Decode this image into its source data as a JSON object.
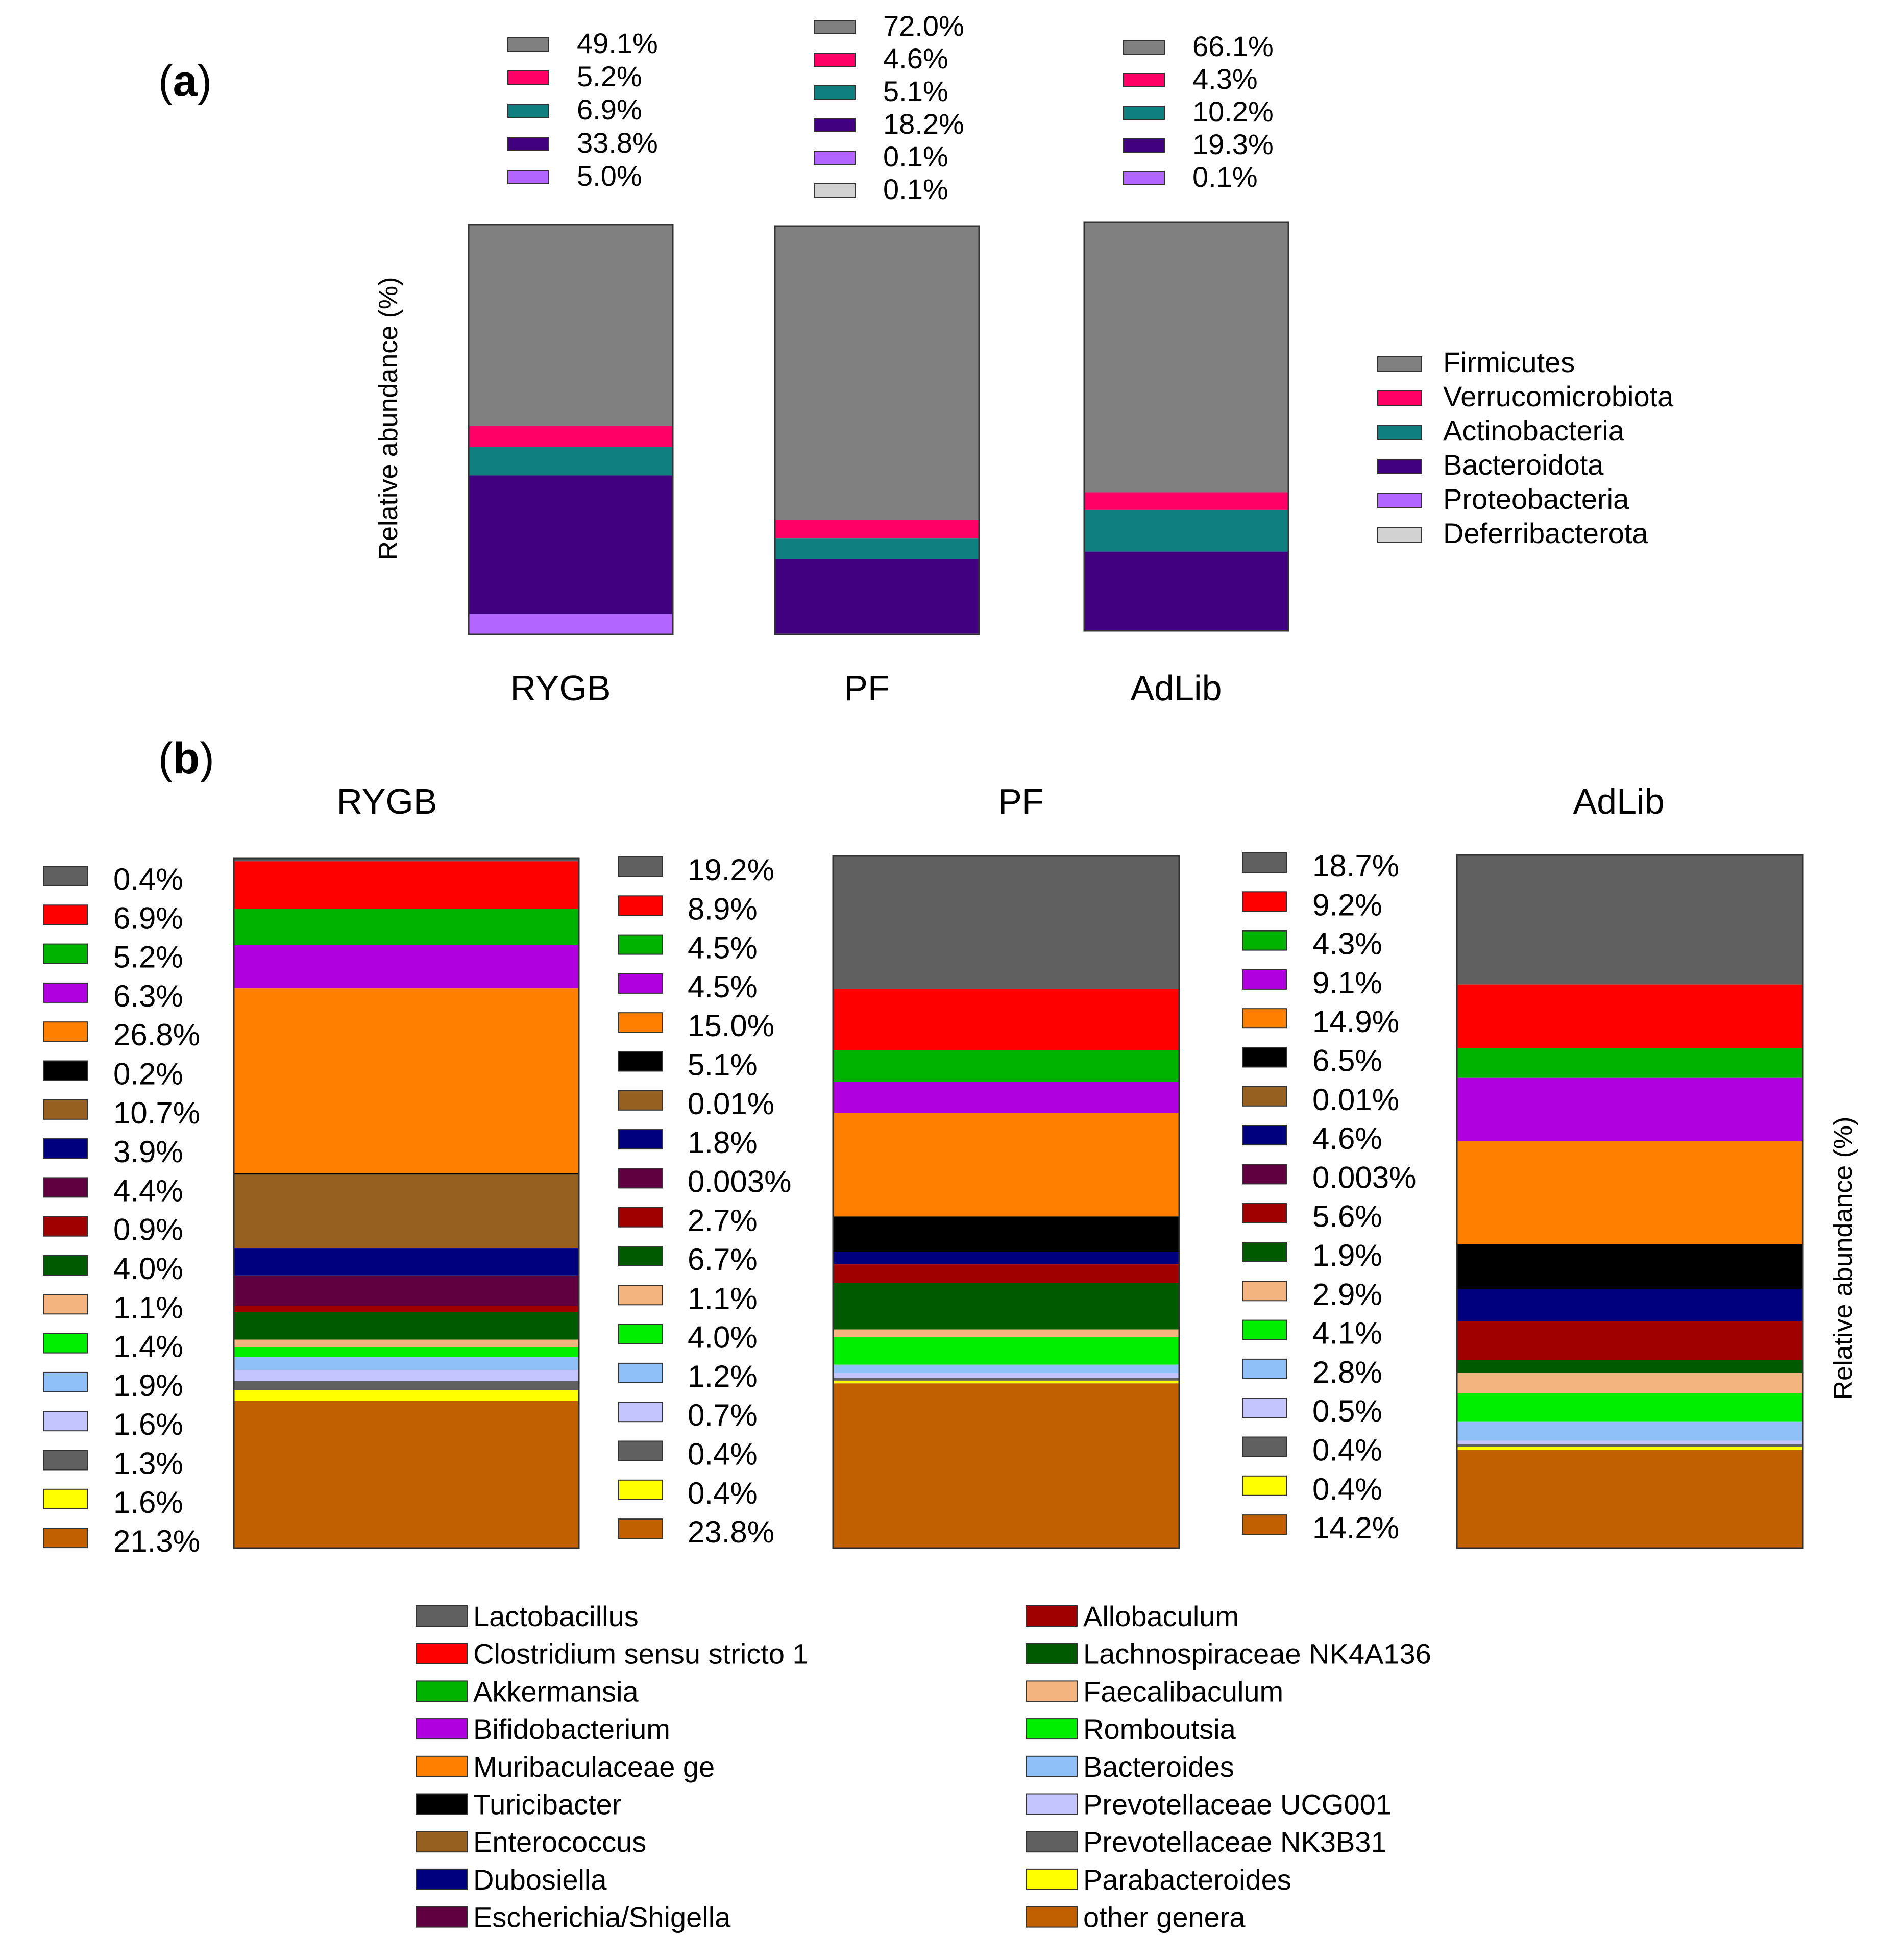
{
  "colors": {
    "phyla": [
      "#808080",
      "#ff0066",
      "#0f7f80",
      "#400080",
      "#b266ff",
      "#d2d2d2"
    ],
    "genera": [
      "#606060",
      "#ff0000",
      "#00b300",
      "#b000e0",
      "#ff8000",
      "#000000",
      "#956020",
      "#00007f",
      "#600040",
      "#a00000",
      "#005a00",
      "#f4b480",
      "#00ee00",
      "#90c0f8",
      "#c4c4ff",
      "#606060",
      "#ffff00",
      "#c06000"
    ]
  },
  "panel_a": {
    "tag_open": "(",
    "tag_letter": "a",
    "tag_close": ")",
    "ylabel": "Relative abundance (%)"
  },
  "panel_b": {
    "tag_open": "(",
    "tag_letter": "b",
    "tag_close": ")",
    "ylabel": "Relative abundance (%)"
  },
  "chart_data": [
    {
      "type": "bar",
      "stacked": true,
      "title": "",
      "ylabel": "Relative abundance (%)",
      "categories": [
        "RYGB",
        "PF",
        "AdLib"
      ],
      "series": [
        {
          "name": "Firmicutes",
          "values": [
            49.1,
            72.0,
            66.1
          ],
          "labels": [
            "49.1%",
            "72.0%",
            "66.1%"
          ]
        },
        {
          "name": "Verrucomicrobiota",
          "values": [
            5.2,
            4.6,
            4.3
          ],
          "labels": [
            "5.2%",
            "4.6%",
            "4.3%"
          ]
        },
        {
          "name": "Actinobacteria",
          "values": [
            6.9,
            5.1,
            10.2
          ],
          "labels": [
            "6.9%",
            "5.1%",
            "10.2%"
          ]
        },
        {
          "name": "Bacteroidota",
          "values": [
            33.8,
            18.2,
            19.3
          ],
          "labels": [
            "33.8%",
            "18.2%",
            "19.3%"
          ]
        },
        {
          "name": "Proteobacteria",
          "values": [
            5.0,
            0.1,
            0.1
          ],
          "labels": [
            "5.0%",
            "0.1%",
            "0.1%"
          ]
        },
        {
          "name": "Deferribacterota",
          "values": [
            null,
            0.1,
            null
          ],
          "labels": [
            "",
            "0.1%",
            ""
          ]
        }
      ],
      "legend_position": "right"
    },
    {
      "type": "bar",
      "stacked": true,
      "title": "",
      "ylabel": "Relative abundance (%)",
      "categories": [
        "RYGB",
        "PF",
        "AdLib"
      ],
      "series": [
        {
          "name": "Lactobacillus",
          "values": [
            0.4,
            19.2,
            18.7
          ],
          "labels": [
            "0.4%",
            "19.2%",
            "18.7%"
          ]
        },
        {
          "name": "Clostridium sensu stricto 1",
          "values": [
            6.9,
            8.9,
            9.2
          ],
          "labels": [
            "6.9%",
            "8.9%",
            "9.2%"
          ]
        },
        {
          "name": "Akkermansia",
          "values": [
            5.2,
            4.5,
            4.3
          ],
          "labels": [
            "5.2%",
            "4.5%",
            "4.3%"
          ]
        },
        {
          "name": "Bifidobacterium",
          "values": [
            6.3,
            4.5,
            9.1
          ],
          "labels": [
            "6.3%",
            "4.5%",
            "9.1%"
          ]
        },
        {
          "name": "Muribaculaceae ge",
          "values": [
            26.8,
            15.0,
            14.9
          ],
          "labels": [
            "26.8%",
            "15.0%",
            "14.9%"
          ]
        },
        {
          "name": "Turicibacter",
          "values": [
            0.2,
            5.1,
            6.5
          ],
          "labels": [
            "0.2%",
            "5.1%",
            "6.5%"
          ]
        },
        {
          "name": "Enterococcus",
          "values": [
            10.7,
            0.01,
            0.01
          ],
          "labels": [
            "10.7%",
            "0.01%",
            "0.01%"
          ]
        },
        {
          "name": "Dubosiella",
          "values": [
            3.9,
            1.8,
            4.6
          ],
          "labels": [
            "3.9%",
            "1.8%",
            "4.6%"
          ]
        },
        {
          "name": "Escherichia/Shigella",
          "values": [
            4.4,
            0.003,
            0.003
          ],
          "labels": [
            "4.4%",
            "0.003%",
            "0.003%"
          ]
        },
        {
          "name": "Allobaculum",
          "values": [
            0.9,
            2.7,
            5.6
          ],
          "labels": [
            "0.9%",
            "2.7%",
            "5.6%"
          ]
        },
        {
          "name": "Lachnospiraceae NK4A136",
          "values": [
            4.0,
            6.7,
            1.9
          ],
          "labels": [
            "4.0%",
            "6.7%",
            "1.9%"
          ]
        },
        {
          "name": "Faecalibaculum",
          "values": [
            1.1,
            1.1,
            2.9
          ],
          "labels": [
            "1.1%",
            "1.1%",
            "2.9%"
          ]
        },
        {
          "name": "Romboutsia",
          "values": [
            1.4,
            4.0,
            4.1
          ],
          "labels": [
            "1.4%",
            "4.0%",
            "4.1%"
          ]
        },
        {
          "name": "Bacteroides",
          "values": [
            1.9,
            1.2,
            2.8
          ],
          "labels": [
            "1.9%",
            "1.2%",
            "2.8%"
          ]
        },
        {
          "name": "Prevotellaceae UCG001",
          "values": [
            1.6,
            0.7,
            0.5
          ],
          "labels": [
            "1.6%",
            "0.7%",
            "0.5%"
          ]
        },
        {
          "name": "Prevotellaceae NK3B31",
          "values": [
            1.3,
            0.4,
            0.4
          ],
          "labels": [
            "1.3%",
            "0.4%",
            "0.4%"
          ]
        },
        {
          "name": "Parabacteroides",
          "values": [
            1.6,
            0.4,
            0.4
          ],
          "labels": [
            "1.6%",
            "0.4%",
            "0.4%"
          ]
        },
        {
          "name": "other genera",
          "values": [
            21.3,
            23.8,
            14.2
          ],
          "labels": [
            "21.3%",
            "23.8%",
            "14.2%"
          ]
        }
      ],
      "legend_position": "bottom"
    }
  ]
}
